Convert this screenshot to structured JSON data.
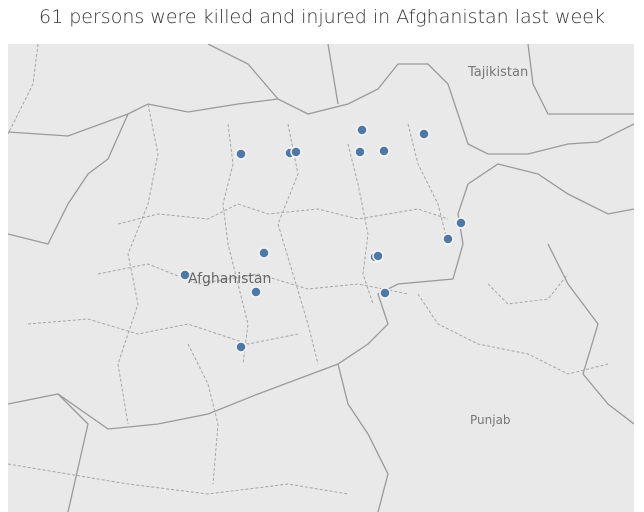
{
  "title": "61 persons were killed and injured in Afghanistan last week",
  "map": {
    "labels": {
      "afghanistan": "Afghanistan",
      "tajikistan": "Tajikistan",
      "punjab": "Punjab"
    },
    "point_color": "#4e79a7",
    "background_color": "#e9e9e9"
  }
}
